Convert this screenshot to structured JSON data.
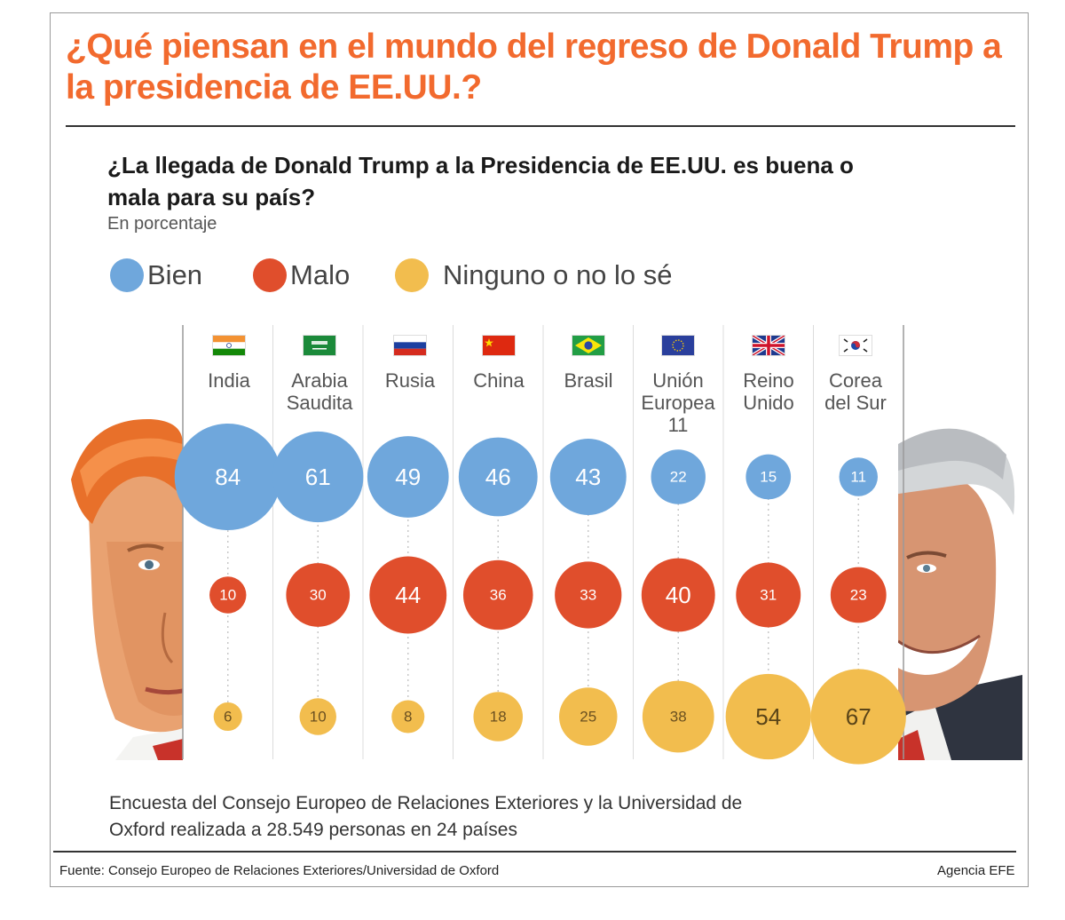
{
  "headline": "¿Qué piensan en el mundo del regreso de Donald Trump a la presidencia de EE.UU.?",
  "question": "¿La llegada de Donald Trump a la Presidencia de EE.UU. es buena o mala para su país?",
  "units": "En porcentaje",
  "legend": [
    {
      "label": "Bien",
      "color": "#6fa7dc"
    },
    {
      "label": "Malo",
      "color": "#e04e2c"
    },
    {
      "label": "Ninguno o no lo sé",
      "color": "#f2bd4e"
    }
  ],
  "countries": [
    {
      "name": "India",
      "flag": "india-flag"
    },
    {
      "name": "Arabia\nSaudita",
      "flag": "saudi-arabia-flag"
    },
    {
      "name": "Rusia",
      "flag": "russia-flag"
    },
    {
      "name": "China",
      "flag": "china-flag"
    },
    {
      "name": "Brasil",
      "flag": "brazil-flag"
    },
    {
      "name": "Unión\nEuropea 11",
      "flag": "eu-flag"
    },
    {
      "name": "Reino\nUnido",
      "flag": "uk-flag"
    },
    {
      "name": "Corea\ndel Sur",
      "flag": "south-korea-flag"
    }
  ],
  "chart_data": {
    "type": "bubble",
    "title": "¿La llegada de Donald Trump a la Presidencia de EE.UU. es buena o mala para su país?",
    "subtitle": "En porcentaje",
    "categories": [
      "India",
      "Arabia Saudita",
      "Rusia",
      "China",
      "Brasil",
      "Unión Europea 11",
      "Reino Unido",
      "Corea del Sur"
    ],
    "series": [
      {
        "name": "Bien",
        "color": "#6fa7dc",
        "values": [
          84,
          61,
          49,
          46,
          43,
          22,
          15,
          11
        ]
      },
      {
        "name": "Malo",
        "color": "#e04e2c",
        "values": [
          10,
          30,
          44,
          36,
          33,
          40,
          31,
          23
        ]
      },
      {
        "name": "Ninguno o no lo sé",
        "color": "#f2bd4e",
        "values": [
          6,
          10,
          8,
          18,
          25,
          38,
          54,
          67
        ]
      }
    ],
    "legend_position": "top-left"
  },
  "note": "Encuesta del Consejo Europeo de Relaciones Exteriores y la Universidad de Oxford realizada a 28.549 personas en 24 países",
  "source": "Fuente: Consejo Europeo de Relaciones Exteriores/Universidad de Oxford",
  "agency": "Agencia EFE"
}
